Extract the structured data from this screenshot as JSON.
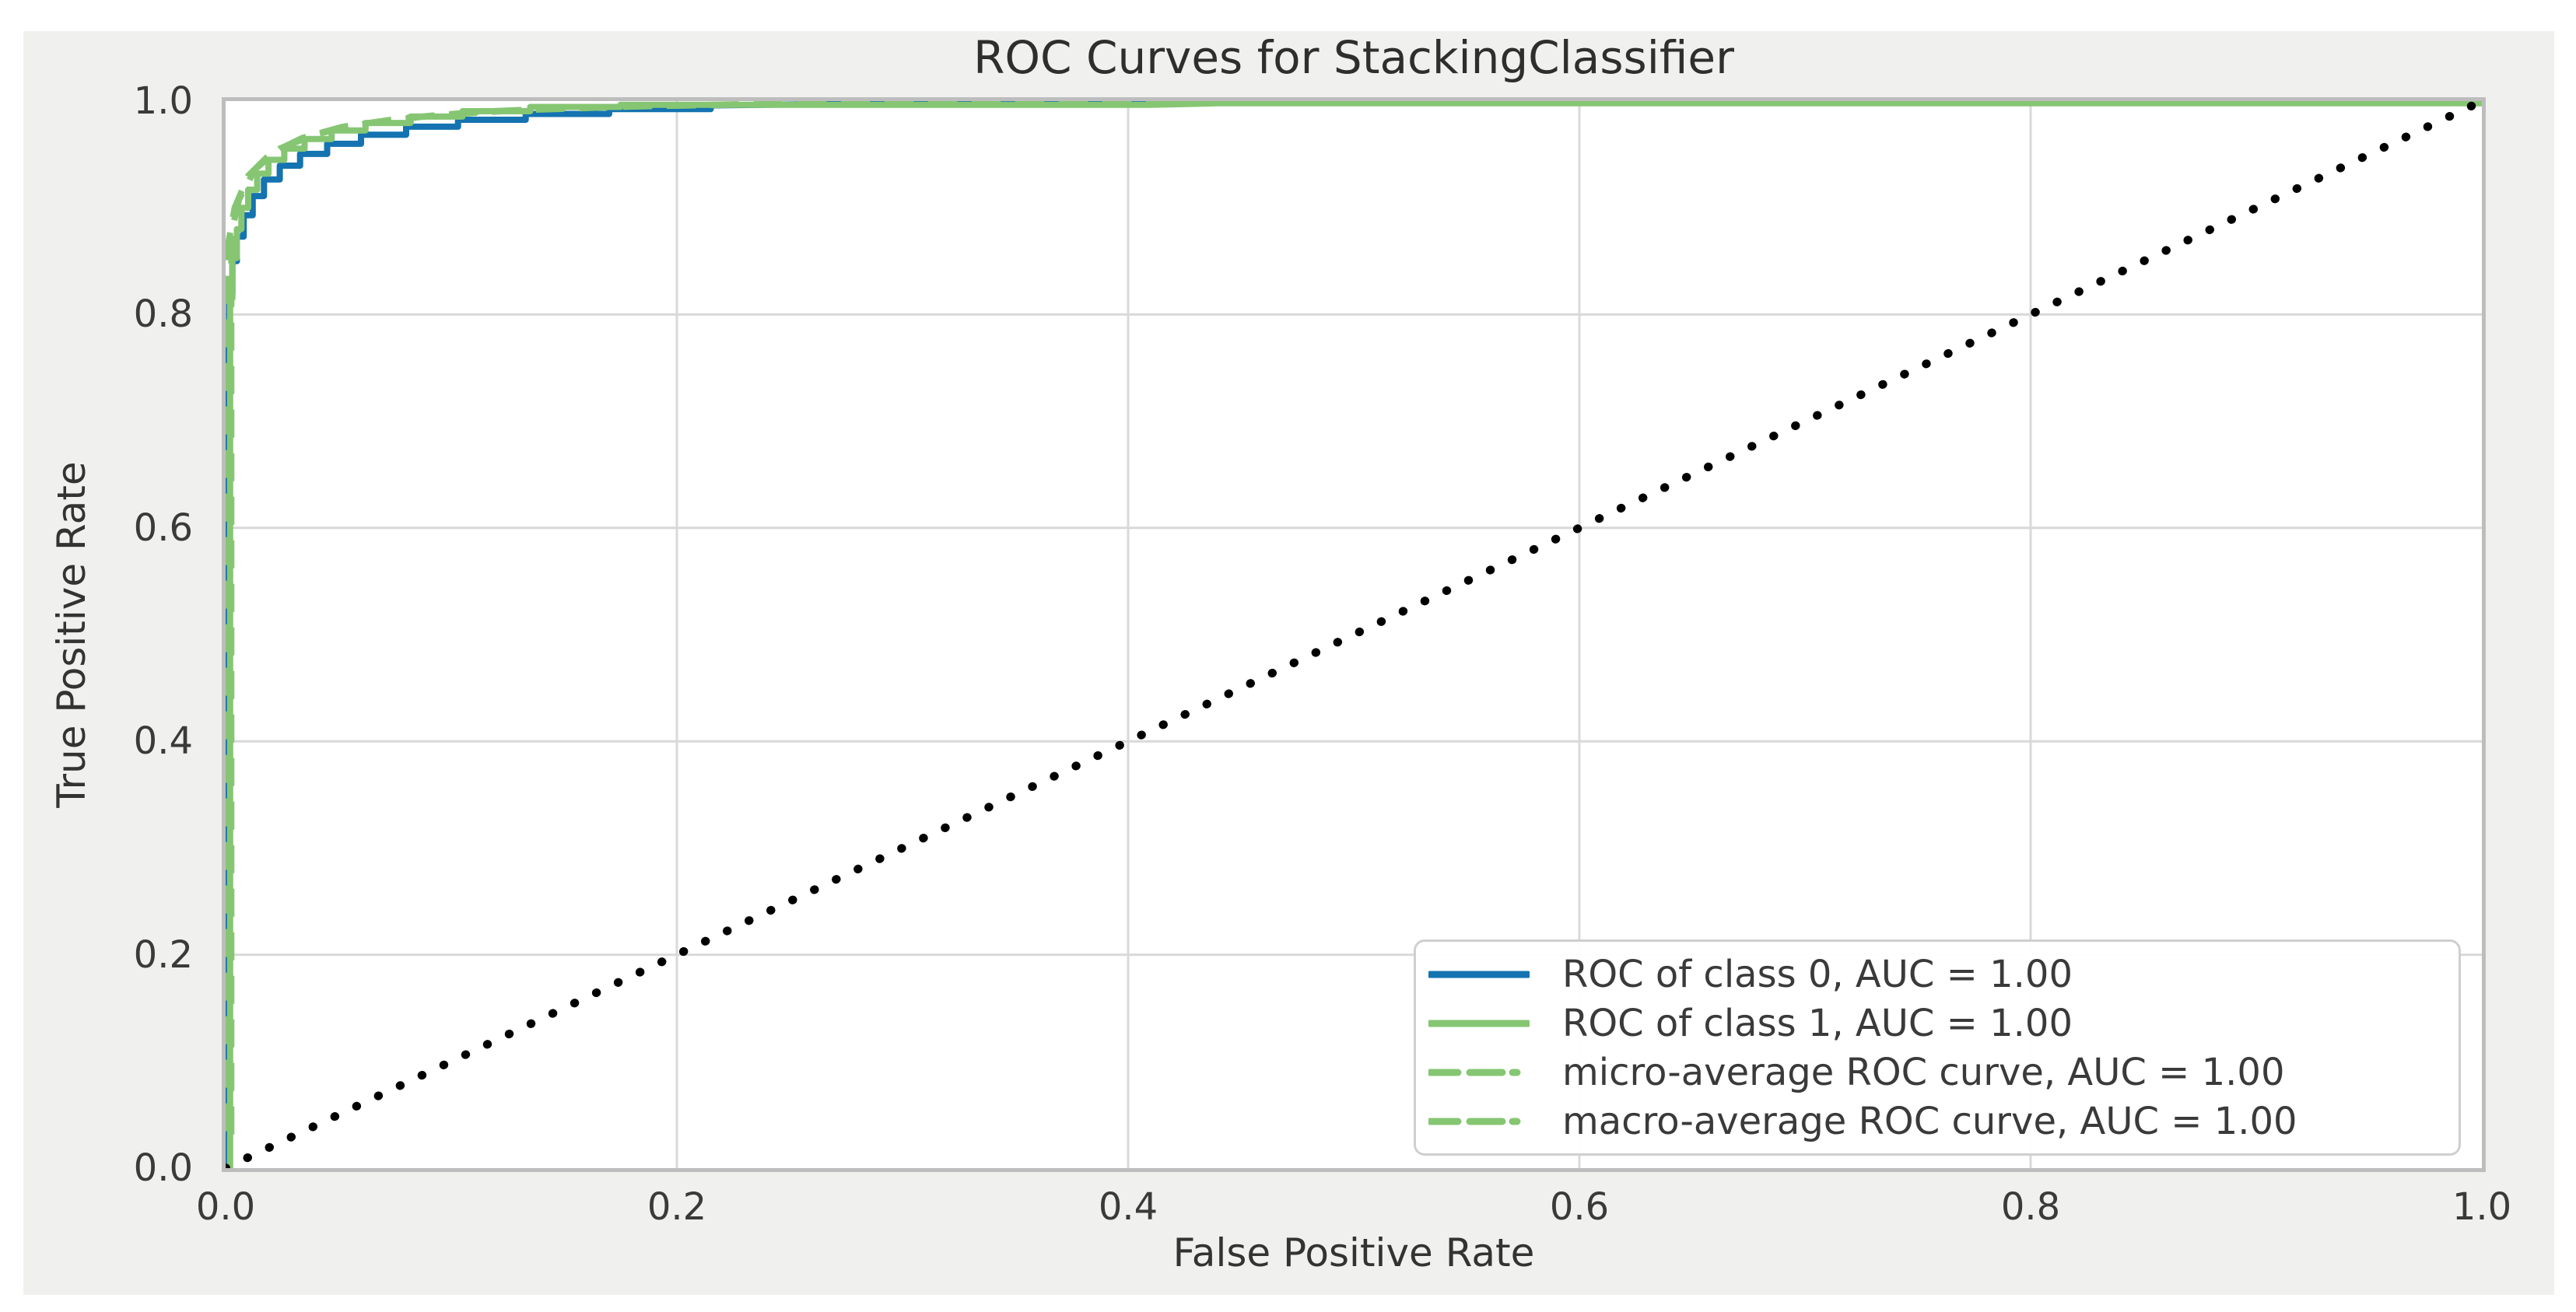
{
  "figure": {
    "background": "#f0f0ef",
    "plot_background": "#ffffff",
    "grid_color": "#d9d9d9",
    "spine_color": "#bdbdbd",
    "text_color": "#3a3a3a"
  },
  "chart_data": {
    "type": "line",
    "title": "ROC Curves for StackingClassifier",
    "xlabel": "False Positive Rate",
    "ylabel": "True Positive Rate",
    "xlim": [
      0.0,
      1.0
    ],
    "ylim": [
      0.0,
      1.0
    ],
    "xticks": [
      "0.0",
      "0.2",
      "0.4",
      "0.6",
      "0.8",
      "1.0"
    ],
    "yticks": [
      "0.0",
      "0.2",
      "0.4",
      "0.6",
      "0.8",
      "1.0"
    ],
    "grid": true,
    "legend_position": "lower-right",
    "series": [
      {
        "name": "roc-class-0",
        "label": "ROC of class 0, AUC = 1.00",
        "auc": 1.0,
        "color": "#1473b0",
        "linestyle": "solid",
        "fpr": [
          0.0008,
          0.0008,
          0.0015,
          0.0015,
          0.003,
          0.003,
          0.005,
          0.005,
          0.008,
          0.008,
          0.012,
          0.012,
          0.017,
          0.017,
          0.024,
          0.024,
          0.033,
          0.033,
          0.045,
          0.045,
          0.06,
          0.06,
          0.08,
          0.08,
          0.103,
          0.103,
          0.133,
          0.133,
          0.17,
          0.17,
          0.215,
          0.215,
          0.3,
          0.34,
          1.0
        ],
        "tpr": [
          0.0,
          0.775,
          0.775,
          0.82,
          0.82,
          0.85,
          0.85,
          0.873,
          0.873,
          0.893,
          0.893,
          0.911,
          0.911,
          0.9265,
          0.9265,
          0.9395,
          0.9395,
          0.9505,
          0.9505,
          0.96,
          0.96,
          0.9685,
          0.9685,
          0.976,
          0.976,
          0.9825,
          0.9825,
          0.988,
          0.988,
          0.9925,
          0.9925,
          0.996,
          0.998,
          0.999,
          0.999
        ]
      },
      {
        "name": "roc-class-1",
        "label": "ROC of class 1, AUC = 1.00",
        "auc": 1.0,
        "color": "#86c673",
        "linestyle": "solid",
        "fpr": [
          0.002,
          0.002,
          0.003,
          0.003,
          0.005,
          0.005,
          0.007,
          0.007,
          0.01,
          0.01,
          0.014,
          0.014,
          0.019,
          0.019,
          0.026,
          0.026,
          0.035,
          0.035,
          0.047,
          0.047,
          0.062,
          0.062,
          0.082,
          0.082,
          0.105,
          0.105,
          0.135,
          0.135,
          0.175,
          0.175,
          0.24,
          0.41,
          0.44,
          1.0
        ],
        "tpr": [
          0.0,
          0.815,
          0.815,
          0.853,
          0.853,
          0.88,
          0.88,
          0.9,
          0.9,
          0.917,
          0.917,
          0.932,
          0.932,
          0.945,
          0.945,
          0.9555,
          0.9555,
          0.9645,
          0.9645,
          0.9725,
          0.9725,
          0.9795,
          0.9795,
          0.9855,
          0.9855,
          0.9905,
          0.9905,
          0.9945,
          0.9945,
          0.9965,
          0.9965,
          0.9965,
          0.998,
          0.998
        ]
      },
      {
        "name": "micro-average",
        "label": "micro-average ROC curve, AUC = 1.00",
        "auc": 1.0,
        "color": "#86c673",
        "linestyle": "dashed",
        "fpr": [
          0.0008,
          0.0008,
          0.004,
          0.01,
          0.02,
          0.034,
          0.052,
          0.078,
          0.112,
          0.16,
          0.23,
          0.36,
          1.0
        ],
        "tpr": [
          0.02,
          0.862,
          0.9,
          0.93,
          0.951,
          0.9655,
          0.976,
          0.984,
          0.99,
          0.9942,
          0.9968,
          0.9985,
          0.9985
        ]
      },
      {
        "name": "macro-average",
        "label": "macro-average ROC curve, AUC = 1.00",
        "auc": 1.0,
        "color": "#86c673",
        "linestyle": "dashed",
        "fpr": [
          0.0025,
          0.0025,
          0.006,
          0.013,
          0.024,
          0.04,
          0.062,
          0.092,
          0.13,
          0.185,
          0.27,
          1.0
        ],
        "tpr": [
          0.03,
          0.877,
          0.908,
          0.936,
          0.9555,
          0.969,
          0.979,
          0.9865,
          0.9915,
          0.9952,
          0.999,
          0.999
        ]
      }
    ],
    "reference_line": {
      "name": "chance-line",
      "style": "dotted",
      "color": "#000000",
      "from": [
        0.0,
        0.0
      ],
      "to": [
        1.0,
        1.0
      ]
    }
  }
}
